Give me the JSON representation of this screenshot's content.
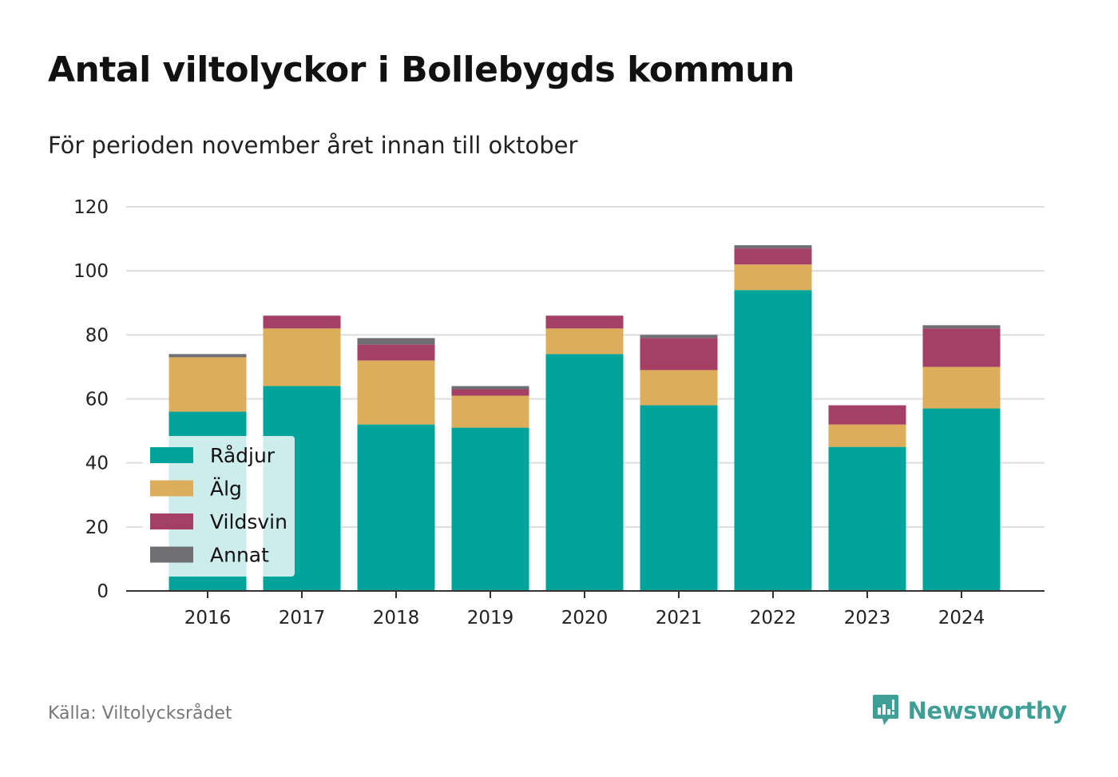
{
  "chart_data": {
    "type": "bar",
    "stacked": true,
    "title": "Antal viltolyckor i Bollebygds kommun",
    "subtitle": "För perioden november året innan till oktober",
    "categories": [
      "2016",
      "2017",
      "2018",
      "2019",
      "2020",
      "2021",
      "2022",
      "2023",
      "2024"
    ],
    "series": [
      {
        "name": "Rådjur",
        "color": "#00a49a",
        "values": [
          56,
          64,
          52,
          51,
          74,
          58,
          94,
          45,
          57
        ]
      },
      {
        "name": "Älg",
        "color": "#dcae5b",
        "values": [
          17,
          18,
          20,
          10,
          8,
          11,
          8,
          7,
          13
        ]
      },
      {
        "name": "Vildsvin",
        "color": "#a63f66",
        "values": [
          0,
          4,
          5,
          2,
          4,
          10,
          5,
          6,
          12
        ]
      },
      {
        "name": "Annat",
        "color": "#6e6e73",
        "values": [
          1,
          0,
          2,
          1,
          0,
          1,
          1,
          0,
          1
        ]
      }
    ],
    "ylim": [
      0,
      120
    ],
    "yticks": [
      0,
      20,
      40,
      60,
      80,
      100,
      120
    ],
    "grid": true,
    "legend": "bottom-left",
    "source": "Källa: Viltolycksrådet",
    "brand": "Newsworthy"
  }
}
